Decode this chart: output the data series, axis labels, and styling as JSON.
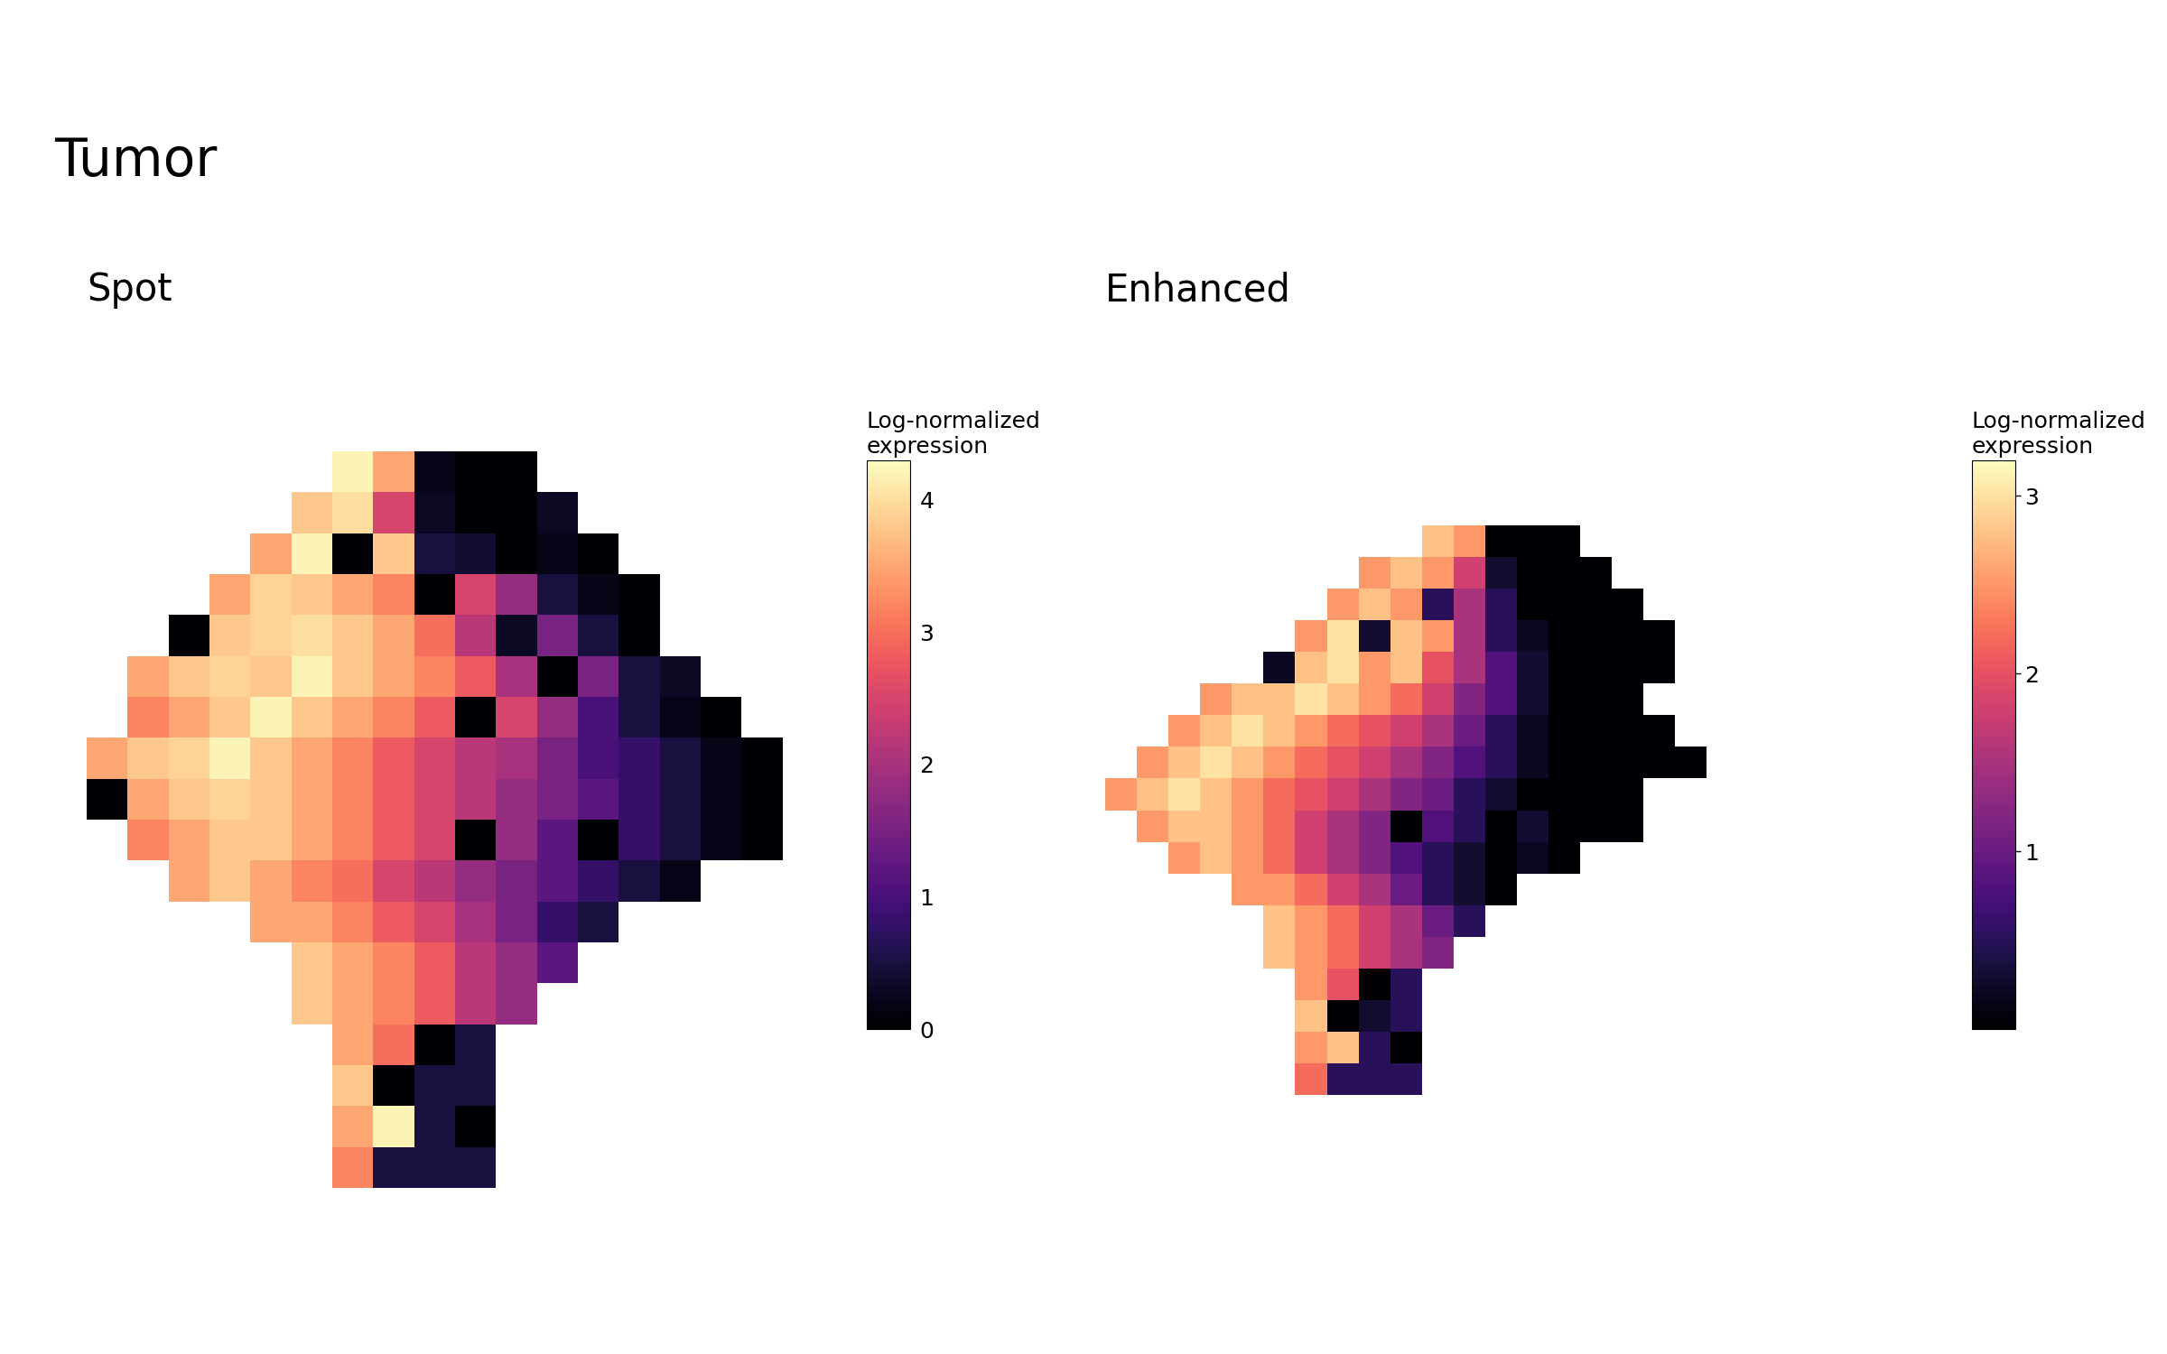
{
  "title": "Tumor",
  "spot_label": "Spot",
  "enhanced_label": "Enhanced",
  "colorbar_label_line1": "Log-normalized",
  "colorbar_label_line2": "expression",
  "spot_vmin": 0,
  "spot_vmax": 4.3,
  "enhanced_vmin": 0,
  "enhanced_vmax": 3.2,
  "spot_cb_ticks": [
    0,
    1,
    2,
    3,
    4
  ],
  "enhanced_cb_ticks": [
    1,
    2,
    3
  ],
  "background_color": "#ffffff",
  "title_fontsize": 42,
  "subplot_label_fontsize": 30,
  "colorbar_label_fontsize": 18,
  "colorbar_tick_fontsize": 18,
  "spot_grid": [
    [
      null,
      null,
      null,
      null,
      null,
      null,
      null,
      null,
      null,
      null,
      null,
      null,
      null,
      null,
      null,
      null,
      null,
      null
    ],
    [
      null,
      null,
      null,
      null,
      null,
      null,
      null,
      null,
      null,
      null,
      null,
      null,
      null,
      null,
      null,
      null,
      null,
      null
    ],
    [
      null,
      null,
      null,
      null,
      null,
      null,
      4.2,
      3.5,
      0.2,
      0.0,
      0.0,
      null,
      null,
      null,
      null,
      null,
      null,
      null
    ],
    [
      null,
      null,
      null,
      null,
      null,
      3.8,
      4.0,
      2.5,
      0.3,
      0.0,
      0.0,
      0.3,
      null,
      null,
      null,
      null,
      null,
      null
    ],
    [
      null,
      null,
      null,
      null,
      3.5,
      4.2,
      0.0,
      3.8,
      0.5,
      0.4,
      0.0,
      0.2,
      0.0,
      null,
      null,
      null,
      null,
      null
    ],
    [
      null,
      null,
      null,
      3.5,
      3.9,
      3.8,
      3.5,
      3.2,
      0.0,
      2.5,
      1.8,
      0.5,
      0.2,
      0.0,
      null,
      null,
      null,
      null
    ],
    [
      null,
      null,
      0.0,
      3.8,
      3.9,
      4.0,
      3.8,
      3.5,
      3.0,
      2.2,
      0.3,
      1.5,
      0.5,
      0.0,
      null,
      null,
      null,
      null
    ],
    [
      null,
      3.5,
      3.8,
      3.9,
      3.8,
      4.2,
      3.8,
      3.5,
      3.2,
      2.8,
      2.0,
      0.0,
      1.5,
      0.5,
      0.3,
      null,
      null,
      null
    ],
    [
      null,
      3.2,
      3.5,
      3.8,
      4.2,
      3.8,
      3.5,
      3.2,
      2.8,
      0.0,
      2.5,
      1.8,
      1.0,
      0.5,
      0.2,
      0.0,
      null,
      null
    ],
    [
      3.5,
      3.8,
      3.9,
      4.2,
      3.8,
      3.5,
      3.2,
      2.8,
      2.5,
      2.2,
      2.0,
      1.5,
      1.0,
      0.8,
      0.5,
      0.2,
      0.0,
      null
    ],
    [
      0.0,
      3.5,
      3.8,
      3.9,
      3.8,
      3.5,
      3.2,
      2.8,
      2.5,
      2.2,
      1.8,
      1.5,
      1.2,
      0.8,
      0.5,
      0.2,
      0.0,
      null
    ],
    [
      null,
      3.2,
      3.5,
      3.8,
      3.8,
      3.5,
      3.2,
      2.8,
      2.5,
      0.0,
      1.8,
      1.2,
      0.0,
      0.8,
      0.5,
      0.2,
      0.0,
      null
    ],
    [
      null,
      null,
      3.5,
      3.8,
      3.5,
      3.2,
      3.0,
      2.5,
      2.2,
      1.8,
      1.5,
      1.2,
      0.8,
      0.5,
      0.2,
      null,
      null,
      null
    ],
    [
      null,
      null,
      null,
      null,
      3.5,
      3.5,
      3.2,
      2.8,
      2.5,
      2.0,
      1.5,
      0.8,
      0.5,
      null,
      null,
      null,
      null,
      null
    ],
    [
      null,
      null,
      null,
      null,
      null,
      3.8,
      3.5,
      3.2,
      2.8,
      2.2,
      1.8,
      1.2,
      null,
      null,
      null,
      null,
      null,
      null
    ],
    [
      null,
      null,
      null,
      null,
      null,
      3.8,
      3.5,
      3.2,
      2.8,
      2.2,
      1.8,
      null,
      null,
      null,
      null,
      null,
      null,
      null
    ],
    [
      null,
      null,
      null,
      null,
      null,
      null,
      3.5,
      3.0,
      0.0,
      0.5,
      null,
      null,
      null,
      null,
      null,
      null,
      null,
      null
    ],
    [
      null,
      null,
      null,
      null,
      null,
      null,
      3.8,
      0.0,
      0.5,
      0.5,
      null,
      null,
      null,
      null,
      null,
      null,
      null,
      null
    ],
    [
      null,
      null,
      null,
      null,
      null,
      null,
      3.5,
      4.2,
      0.5,
      0.0,
      null,
      null,
      null,
      null,
      null,
      null,
      null,
      null
    ],
    [
      null,
      null,
      null,
      null,
      null,
      null,
      3.2,
      0.5,
      0.5,
      0.5,
      null,
      null,
      null,
      null,
      null,
      null,
      null,
      null
    ]
  ],
  "enhanced_grid": [
    [
      null,
      null,
      null,
      null,
      null,
      null,
      null,
      null,
      null,
      null,
      null,
      null,
      null,
      null,
      null,
      null,
      null,
      null,
      null,
      null,
      null,
      null,
      null,
      null,
      null,
      null
    ],
    [
      null,
      null,
      null,
      null,
      null,
      null,
      null,
      null,
      null,
      null,
      null,
      null,
      null,
      null,
      null,
      null,
      null,
      null,
      null,
      null,
      null,
      null,
      null,
      null,
      null,
      null
    ],
    [
      null,
      null,
      null,
      null,
      null,
      null,
      null,
      null,
      null,
      null,
      2.8,
      2.5,
      0.0,
      0.0,
      0.0,
      null,
      null,
      null,
      null,
      null,
      null,
      null,
      null,
      null,
      null,
      null
    ],
    [
      null,
      null,
      null,
      null,
      null,
      null,
      null,
      null,
      2.5,
      2.8,
      2.5,
      1.8,
      0.3,
      0.0,
      0.0,
      0.0,
      null,
      null,
      null,
      null,
      null,
      null,
      null,
      null,
      null,
      null
    ],
    [
      null,
      null,
      null,
      null,
      null,
      null,
      null,
      2.5,
      2.8,
      2.5,
      0.5,
      1.5,
      0.5,
      0.0,
      0.0,
      0.0,
      0.0,
      null,
      null,
      null,
      null,
      null,
      null,
      null,
      null,
      null
    ],
    [
      null,
      null,
      null,
      null,
      null,
      null,
      2.5,
      3.0,
      0.3,
      2.8,
      2.5,
      1.5,
      0.5,
      0.2,
      0.0,
      0.0,
      0.0,
      0.0,
      null,
      null,
      null,
      null,
      null,
      null,
      null,
      null
    ],
    [
      null,
      null,
      null,
      null,
      null,
      0.2,
      2.8,
      3.0,
      2.5,
      2.8,
      2.0,
      1.5,
      0.8,
      0.3,
      0.0,
      0.0,
      0.0,
      0.0,
      null,
      null,
      null,
      null,
      null,
      null,
      null,
      null
    ],
    [
      null,
      null,
      null,
      2.5,
      2.8,
      2.8,
      3.0,
      2.8,
      2.5,
      2.2,
      1.8,
      1.2,
      0.8,
      0.3,
      0.0,
      0.0,
      0.0,
      null,
      null,
      null,
      null,
      null,
      null,
      null,
      null,
      null
    ],
    [
      null,
      null,
      2.5,
      2.8,
      3.0,
      2.8,
      2.5,
      2.2,
      2.0,
      1.8,
      1.5,
      1.0,
      0.5,
      0.2,
      0.0,
      0.0,
      0.0,
      0.0,
      null,
      null,
      null,
      null,
      null,
      null,
      null,
      null
    ],
    [
      null,
      2.5,
      2.8,
      3.0,
      2.8,
      2.5,
      2.2,
      2.0,
      1.8,
      1.5,
      1.2,
      0.8,
      0.5,
      0.2,
      0.0,
      0.0,
      0.0,
      0.0,
      0.0,
      null,
      null,
      null,
      null,
      null,
      null,
      null
    ],
    [
      2.5,
      2.8,
      3.0,
      2.8,
      2.5,
      2.2,
      2.0,
      1.8,
      1.5,
      1.2,
      1.0,
      0.5,
      0.3,
      0.0,
      0.0,
      0.0,
      0.0,
      null,
      null,
      null,
      null,
      null,
      null,
      null,
      null,
      null
    ],
    [
      null,
      2.5,
      2.8,
      2.8,
      2.5,
      2.2,
      1.8,
      1.5,
      1.2,
      0.0,
      0.8,
      0.5,
      0.0,
      0.3,
      0.0,
      0.0,
      0.0,
      null,
      null,
      null,
      null,
      null,
      null,
      null,
      null,
      null
    ],
    [
      null,
      null,
      2.5,
      2.8,
      2.5,
      2.2,
      1.8,
      1.5,
      1.2,
      0.8,
      0.5,
      0.3,
      0.0,
      0.2,
      0.0,
      null,
      null,
      null,
      null,
      null,
      null,
      null,
      null,
      null,
      null,
      null
    ],
    [
      null,
      null,
      null,
      null,
      2.5,
      2.5,
      2.2,
      1.8,
      1.5,
      1.0,
      0.5,
      0.3,
      0.0,
      null,
      null,
      null,
      null,
      null,
      null,
      null,
      null,
      null,
      null,
      null,
      null,
      null
    ],
    [
      null,
      null,
      null,
      null,
      null,
      2.8,
      2.5,
      2.2,
      1.8,
      1.5,
      1.0,
      0.5,
      null,
      null,
      null,
      null,
      null,
      null,
      null,
      null,
      null,
      null,
      null,
      null,
      null,
      null
    ],
    [
      null,
      null,
      null,
      null,
      null,
      2.8,
      2.5,
      2.2,
      1.8,
      1.5,
      1.2,
      null,
      null,
      null,
      null,
      null,
      null,
      null,
      null,
      null,
      null,
      null,
      null,
      null,
      null,
      null
    ],
    [
      null,
      null,
      null,
      null,
      null,
      null,
      2.5,
      2.0,
      0.0,
      0.5,
      null,
      null,
      null,
      null,
      null,
      null,
      null,
      null,
      null,
      null,
      null,
      null,
      null,
      null,
      null,
      null
    ],
    [
      null,
      null,
      null,
      null,
      null,
      null,
      2.8,
      0.0,
      0.3,
      0.5,
      null,
      null,
      null,
      null,
      null,
      null,
      null,
      null,
      null,
      null,
      null,
      null,
      null,
      null,
      null,
      null
    ],
    [
      null,
      null,
      null,
      null,
      null,
      null,
      2.5,
      2.8,
      0.5,
      0.0,
      null,
      null,
      null,
      null,
      null,
      null,
      null,
      null,
      null,
      null,
      null,
      null,
      null,
      null,
      null,
      null
    ],
    [
      null,
      null,
      null,
      null,
      null,
      null,
      2.2,
      0.5,
      0.5,
      0.5,
      null,
      null,
      null,
      null,
      null,
      null,
      null,
      null,
      null,
      null,
      null,
      null,
      null,
      null,
      null,
      null
    ]
  ]
}
